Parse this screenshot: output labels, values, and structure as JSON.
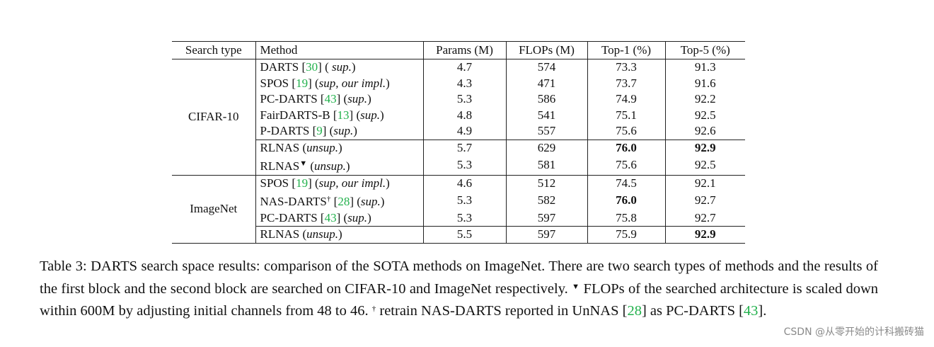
{
  "table": {
    "headers": [
      "Search type",
      "Method",
      "Params (M)",
      "FLOPs (M)",
      "Top-1 (%)",
      "Top-5 (%)"
    ],
    "groups": [
      {
        "search_type": "CIFAR-10",
        "rows": [
          {
            "name": "DARTS ",
            "cite": "30",
            "note_pre": " ( ",
            "note": "sup.",
            "note_post": ")",
            "params": "4.7",
            "flops": "574",
            "top1": "73.3",
            "top5": "91.3"
          },
          {
            "name": "SPOS ",
            "cite": "19",
            "note_pre": " (",
            "note": "sup, our impl.",
            "note_post": ")",
            "params": "4.3",
            "flops": "471",
            "top1": "73.7",
            "top5": "91.6"
          },
          {
            "name": "PC-DARTS ",
            "cite": "43",
            "note_pre": " (",
            "note": "sup.",
            "note_post": ")",
            "params": "5.3",
            "flops": "586",
            "top1": "74.9",
            "top5": "92.2"
          },
          {
            "name": "FairDARTS-B ",
            "cite": "13",
            "note_pre": " (",
            "note": "sup.",
            "note_post": ")",
            "params": "4.8",
            "flops": "541",
            "top1": "75.1",
            "top5": "92.5"
          },
          {
            "name": "P-DARTS ",
            "cite": "9",
            "note_pre": " (",
            "note": "sup.",
            "note_post": ")",
            "params": "4.9",
            "flops": "557",
            "top1": "75.6",
            "top5": "92.6"
          },
          {
            "name": "RLNAS",
            "note_pre": " (",
            "note": "unsup.",
            "note_post": ")",
            "params": "5.7",
            "flops": "629",
            "top1": "76.0",
            "top5": "92.9",
            "bold_top1": true,
            "bold_top5": true
          },
          {
            "name": "RLNAS",
            "mark": "▼",
            "note_pre": " (",
            "note": "unsup.",
            "note_post": ")",
            "params": "5.3",
            "flops": "581",
            "top1": "75.6",
            "top5": "92.5"
          }
        ]
      },
      {
        "search_type": "ImageNet",
        "rows": [
          {
            "name": "SPOS ",
            "cite": "19",
            "note_pre": " (",
            "note": "sup, our impl.",
            "note_post": ")",
            "params": "4.6",
            "flops": "512",
            "top1": "74.5",
            "top5": "92.1"
          },
          {
            "name": "NAS-DARTS",
            "mark": "†",
            "cite_pre": " ",
            "cite": "28",
            "note_pre": " (",
            "note": "sup.",
            "note_post": ")",
            "params": "5.3",
            "flops": "582",
            "top1": "76.0",
            "top5": "92.7",
            "bold_top1": true
          },
          {
            "name": "PC-DARTS ",
            "cite": "43",
            "note_pre": " (",
            "note": "sup.",
            "note_post": ")",
            "params": "5.3",
            "flops": "597",
            "top1": "75.8",
            "top5": "92.7"
          },
          {
            "name": "RLNAS",
            "note_pre": " (",
            "note": "unsup.",
            "note_post": ")",
            "params": "5.5",
            "flops": "597",
            "top1": "75.9",
            "top5": "92.9",
            "bold_top5": true
          }
        ]
      }
    ]
  },
  "caption": {
    "part1": "Table 3: DARTS search space results: comparison of the SOTA methods on ImageNet. There are two search types of methods and the results of the first block and the second block are searched on CIFAR-10 and ImageNet respectively. ",
    "mark1": "▼",
    "part2": " FLOPs of the searched architecture is scaled down within 600M by adjusting initial channels from 48 to 46. ",
    "mark2": "†",
    "part3": " retrain NAS-DARTS reported in UnNAS [",
    "cite1": "28",
    "part4": "] as PC-DARTS [",
    "cite2": "43",
    "part5": "]."
  },
  "colors": {
    "citation": "#22b14c",
    "text": "#111111",
    "watermark": "#8a8a8a"
  },
  "watermark": "CSDN @从零开始的计科搬砖猫"
}
